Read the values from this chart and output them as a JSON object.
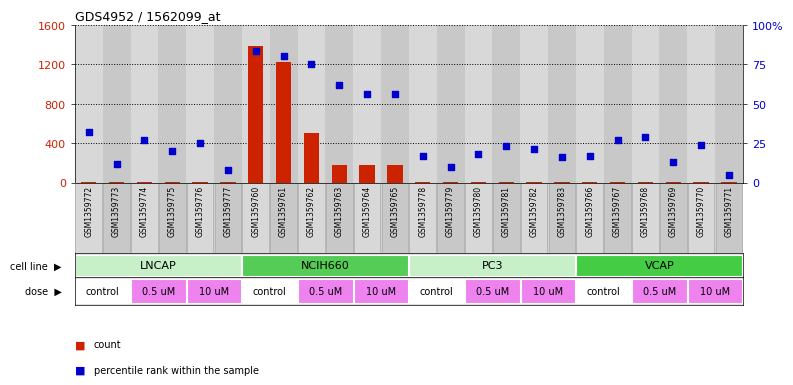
{
  "title": "GDS4952 / 1562099_at",
  "samples": [
    "GSM1359772",
    "GSM1359773",
    "GSM1359774",
    "GSM1359775",
    "GSM1359776",
    "GSM1359777",
    "GSM1359760",
    "GSM1359761",
    "GSM1359762",
    "GSM1359763",
    "GSM1359764",
    "GSM1359765",
    "GSM1359778",
    "GSM1359779",
    "GSM1359780",
    "GSM1359781",
    "GSM1359782",
    "GSM1359783",
    "GSM1359766",
    "GSM1359767",
    "GSM1359768",
    "GSM1359769",
    "GSM1359770",
    "GSM1359771"
  ],
  "counts": [
    10,
    10,
    10,
    10,
    10,
    10,
    1380,
    1220,
    500,
    175,
    175,
    175,
    10,
    10,
    10,
    10,
    10,
    10,
    10,
    10,
    10,
    10,
    10,
    10
  ],
  "percentiles": [
    32,
    12,
    27,
    20,
    25,
    8,
    83,
    80,
    75,
    62,
    56,
    56,
    17,
    10,
    18,
    23,
    21,
    16,
    17,
    27,
    29,
    13,
    24,
    5
  ],
  "cell_lines": [
    {
      "name": "LNCAP",
      "start": 0,
      "end": 6,
      "color": "#c8f0c8"
    },
    {
      "name": "NCIH660",
      "start": 6,
      "end": 12,
      "color": "#55cc55"
    },
    {
      "name": "PC3",
      "start": 12,
      "end": 18,
      "color": "#c8f0c8"
    },
    {
      "name": "VCAP",
      "start": 18,
      "end": 24,
      "color": "#44cc44"
    }
  ],
  "dose_groups": [
    {
      "start": 0,
      "end": 2,
      "label": "control",
      "color": "#ffffff"
    },
    {
      "start": 2,
      "end": 4,
      "label": "0.5 uM",
      "color": "#ee82ee"
    },
    {
      "start": 4,
      "end": 6,
      "label": "10 uM",
      "color": "#ee82ee"
    },
    {
      "start": 6,
      "end": 8,
      "label": "control",
      "color": "#ffffff"
    },
    {
      "start": 8,
      "end": 10,
      "label": "0.5 uM",
      "color": "#ee82ee"
    },
    {
      "start": 10,
      "end": 12,
      "label": "10 uM",
      "color": "#ee82ee"
    },
    {
      "start": 12,
      "end": 14,
      "label": "control",
      "color": "#ffffff"
    },
    {
      "start": 14,
      "end": 16,
      "label": "0.5 uM",
      "color": "#ee82ee"
    },
    {
      "start": 16,
      "end": 18,
      "label": "10 uM",
      "color": "#ee82ee"
    },
    {
      "start": 18,
      "end": 20,
      "label": "control",
      "color": "#ffffff"
    },
    {
      "start": 20,
      "end": 22,
      "label": "0.5 uM",
      "color": "#ee82ee"
    },
    {
      "start": 22,
      "end": 24,
      "label": "10 uM",
      "color": "#ee82ee"
    }
  ],
  "bar_color": "#cc2200",
  "scatter_color": "#0000cc",
  "ylim_left": [
    0,
    1600
  ],
  "ylim_right": [
    0,
    100
  ],
  "yticks_left": [
    0,
    400,
    800,
    1200,
    1600
  ],
  "ytick_labels_left": [
    "0",
    "400",
    "800",
    "1200",
    "1600"
  ],
  "yticks_right": [
    0,
    25,
    50,
    75,
    100
  ],
  "ytick_labels_right": [
    "0",
    "25",
    "50",
    "75",
    "100%"
  ],
  "bg_color": "#ffffff"
}
